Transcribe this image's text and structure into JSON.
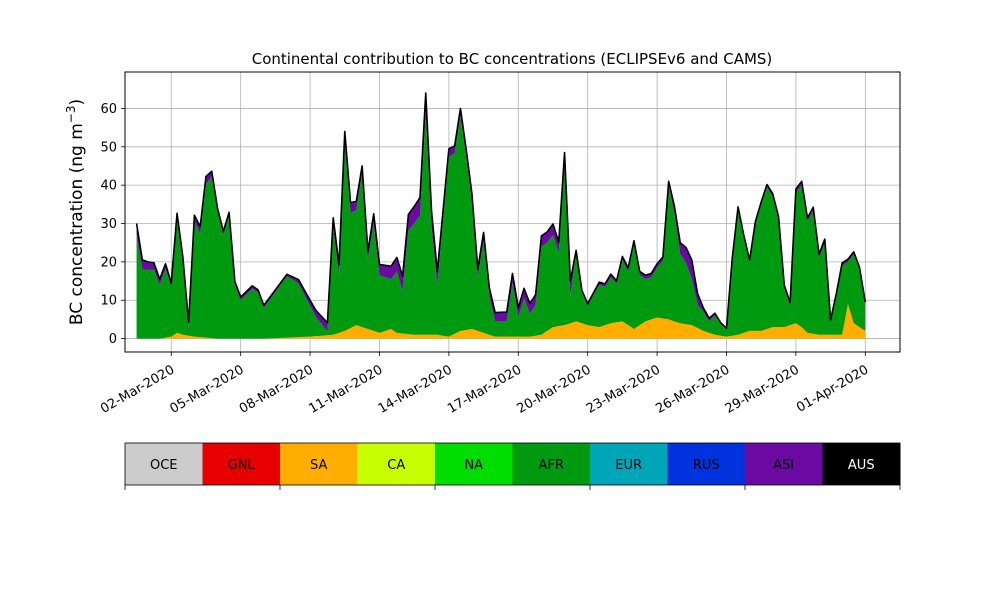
{
  "chart_data": {
    "type": "area",
    "title": "Continental contribution to BC concentrations (ECLIPSEv6 and CAMS)",
    "ylabel_main": "BC concentration (ng m",
    "ylabel_exp": "−3",
    "ylabel_close": ")",
    "xlabel": "",
    "ylim": [
      -3.5,
      69.5
    ],
    "yticks": [
      0,
      10,
      20,
      30,
      40,
      50,
      60
    ],
    "ytick_labels": [
      "0",
      "10",
      "20",
      "30",
      "40",
      "50",
      "60"
    ],
    "xlim": [
      "2020-02-29T00:00",
      "2020-04-02T12:00"
    ],
    "xtick_dates": [
      "2020-03-02",
      "2020-03-05",
      "2020-03-08",
      "2020-03-11",
      "2020-03-14",
      "2020-03-17",
      "2020-03-20",
      "2020-03-23",
      "2020-03-26",
      "2020-03-29",
      "2020-04-01"
    ],
    "xtick_labels": [
      "02-Mar-2020",
      "05-Mar-2020",
      "08-Mar-2020",
      "11-Mar-2020",
      "14-Mar-2020",
      "17-Mar-2020",
      "20-Mar-2020",
      "23-Mar-2020",
      "26-Mar-2020",
      "29-Mar-2020",
      "01-Apr-2020"
    ],
    "grid": true,
    "series_order": [
      "SA",
      "AFR",
      "ASI"
    ],
    "series": [
      {
        "name": "SA",
        "color": "#ffae00",
        "points": [
          [
            "2020-02-29T12:00",
            0
          ],
          [
            "2020-03-01T12:00",
            0
          ],
          [
            "2020-03-02T00:00",
            0.5
          ],
          [
            "2020-03-02T06:00",
            1.5
          ],
          [
            "2020-03-02T12:00",
            1
          ],
          [
            "2020-03-03T00:00",
            0.5
          ],
          [
            "2020-03-04T00:00",
            0
          ],
          [
            "2020-03-06T00:00",
            0
          ],
          [
            "2020-03-08T00:00",
            0.5
          ],
          [
            "2020-03-09T00:00",
            1
          ],
          [
            "2020-03-09T12:00",
            2
          ],
          [
            "2020-03-10T00:00",
            3.5
          ],
          [
            "2020-03-10T12:00",
            2.5
          ],
          [
            "2020-03-11T00:00",
            1.5
          ],
          [
            "2020-03-11T12:00",
            2.5
          ],
          [
            "2020-03-11T18:00",
            1.5
          ],
          [
            "2020-03-12T12:00",
            1
          ],
          [
            "2020-03-13T12:00",
            1
          ],
          [
            "2020-03-14T00:00",
            0.5
          ],
          [
            "2020-03-14T12:00",
            2
          ],
          [
            "2020-03-15T00:00",
            2.5
          ],
          [
            "2020-03-15T12:00",
            1.5
          ],
          [
            "2020-03-16T00:00",
            0.5
          ],
          [
            "2020-03-17T12:00",
            0.5
          ],
          [
            "2020-03-18T00:00",
            1
          ],
          [
            "2020-03-18T12:00",
            3
          ],
          [
            "2020-03-19T00:00",
            3.5
          ],
          [
            "2020-03-19T12:00",
            4.5
          ],
          [
            "2020-03-20T00:00",
            3.5
          ],
          [
            "2020-03-20T12:00",
            3
          ],
          [
            "2020-03-21T00:00",
            4
          ],
          [
            "2020-03-21T12:00",
            4.5
          ],
          [
            "2020-03-22T00:00",
            2.5
          ],
          [
            "2020-03-22T12:00",
            4.5
          ],
          [
            "2020-03-23T00:00",
            5.5
          ],
          [
            "2020-03-23T12:00",
            5
          ],
          [
            "2020-03-24T00:00",
            4
          ],
          [
            "2020-03-24T12:00",
            3.5
          ],
          [
            "2020-03-25T00:00",
            2
          ],
          [
            "2020-03-25T12:00",
            1
          ],
          [
            "2020-03-26T00:00",
            0.5
          ],
          [
            "2020-03-26T12:00",
            1
          ],
          [
            "2020-03-27T00:00",
            2
          ],
          [
            "2020-03-27T12:00",
            2
          ],
          [
            "2020-03-28T00:00",
            3
          ],
          [
            "2020-03-28T12:00",
            3
          ],
          [
            "2020-03-29T00:00",
            4
          ],
          [
            "2020-03-29T06:00",
            3
          ],
          [
            "2020-03-29T12:00",
            1.5
          ],
          [
            "2020-03-30T00:00",
            1
          ],
          [
            "2020-03-30T12:00",
            1
          ],
          [
            "2020-03-31T00:00",
            1
          ],
          [
            "2020-03-31T06:00",
            9
          ],
          [
            "2020-03-31T12:00",
            4
          ],
          [
            "2020-03-31T18:00",
            3
          ],
          [
            "2020-04-01T00:00",
            2
          ]
        ]
      },
      {
        "name": "AFR",
        "color": "#009a10",
        "points": [
          [
            "2020-02-29T12:00",
            27
          ],
          [
            "2020-02-29T18:00",
            18
          ],
          [
            "2020-03-01T00:00",
            18
          ],
          [
            "2020-03-01T06:00",
            18
          ],
          [
            "2020-03-01T12:00",
            14
          ],
          [
            "2020-03-01T18:00",
            18
          ],
          [
            "2020-03-02T00:00",
            13
          ],
          [
            "2020-03-02T06:00",
            30
          ],
          [
            "2020-03-02T12:00",
            19
          ],
          [
            "2020-03-02T18:00",
            2
          ],
          [
            "2020-03-03T00:00",
            30
          ],
          [
            "2020-03-03T06:00",
            27
          ],
          [
            "2020-03-03T12:00",
            40
          ],
          [
            "2020-03-03T18:00",
            42
          ],
          [
            "2020-03-04T00:00",
            33
          ],
          [
            "2020-03-04T06:00",
            27
          ],
          [
            "2020-03-04T12:00",
            32
          ],
          [
            "2020-03-04T18:00",
            14
          ],
          [
            "2020-03-05T00:00",
            10
          ],
          [
            "2020-03-05T12:00",
            13
          ],
          [
            "2020-03-05T18:00",
            12
          ],
          [
            "2020-03-06T00:00",
            8
          ],
          [
            "2020-03-06T12:00",
            12
          ],
          [
            "2020-03-07T00:00",
            16
          ],
          [
            "2020-03-07T12:00",
            14
          ],
          [
            "2020-03-08T00:00",
            8
          ],
          [
            "2020-03-08T06:00",
            5
          ],
          [
            "2020-03-08T12:00",
            3
          ],
          [
            "2020-03-08T18:00",
            1
          ],
          [
            "2020-03-09T00:00",
            28
          ],
          [
            "2020-03-09T06:00",
            15
          ],
          [
            "2020-03-09T12:00",
            49
          ],
          [
            "2020-03-09T18:00",
            30
          ],
          [
            "2020-03-10T00:00",
            30
          ],
          [
            "2020-03-10T06:00",
            40
          ],
          [
            "2020-03-10T12:00",
            18
          ],
          [
            "2020-03-10T18:00",
            28
          ],
          [
            "2020-03-11T00:00",
            15
          ],
          [
            "2020-03-11T12:00",
            13
          ],
          [
            "2020-03-11T18:00",
            16
          ],
          [
            "2020-03-12T00:00",
            11
          ],
          [
            "2020-03-12T06:00",
            27
          ],
          [
            "2020-03-12T12:00",
            29
          ],
          [
            "2020-03-12T18:00",
            31
          ],
          [
            "2020-03-13T00:00",
            58
          ],
          [
            "2020-03-13T06:00",
            28
          ],
          [
            "2020-03-13T12:00",
            13
          ],
          [
            "2020-03-13T18:00",
            30
          ],
          [
            "2020-03-14T00:00",
            47
          ],
          [
            "2020-03-14T06:00",
            47
          ],
          [
            "2020-03-14T12:00",
            56
          ],
          [
            "2020-03-14T18:00",
            45
          ],
          [
            "2020-03-15T00:00",
            33
          ],
          [
            "2020-03-15T06:00",
            14
          ],
          [
            "2020-03-15T12:00",
            24
          ],
          [
            "2020-03-15T18:00",
            10
          ],
          [
            "2020-03-16T00:00",
            4
          ],
          [
            "2020-03-16T06:00",
            4
          ],
          [
            "2020-03-16T12:00",
            4
          ],
          [
            "2020-03-16T18:00",
            14
          ],
          [
            "2020-03-17T00:00",
            5
          ],
          [
            "2020-03-17T06:00",
            10
          ],
          [
            "2020-03-17T12:00",
            6
          ],
          [
            "2020-03-17T18:00",
            8
          ],
          [
            "2020-03-18T00:00",
            23
          ],
          [
            "2020-03-18T06:00",
            23
          ],
          [
            "2020-03-18T12:00",
            24
          ],
          [
            "2020-03-18T18:00",
            19
          ],
          [
            "2020-03-19T00:00",
            42
          ],
          [
            "2020-03-19T06:00",
            7
          ],
          [
            "2020-03-19T12:00",
            18
          ],
          [
            "2020-03-19T18:00",
            8
          ],
          [
            "2020-03-20T00:00",
            5
          ],
          [
            "2020-03-20T06:00",
            8
          ],
          [
            "2020-03-20T12:00",
            11
          ],
          [
            "2020-03-20T18:00",
            10
          ],
          [
            "2020-03-21T00:00",
            12
          ],
          [
            "2020-03-21T06:00",
            10
          ],
          [
            "2020-03-21T12:00",
            16
          ],
          [
            "2020-03-21T18:00",
            14
          ],
          [
            "2020-03-22T00:00",
            22
          ],
          [
            "2020-03-22T06:00",
            13
          ],
          [
            "2020-03-22T12:00",
            11
          ],
          [
            "2020-03-22T18:00",
            11
          ],
          [
            "2020-03-23T00:00",
            13
          ],
          [
            "2020-03-23T06:00",
            15
          ],
          [
            "2020-03-23T12:00",
            35
          ],
          [
            "2020-03-23T18:00",
            28
          ],
          [
            "2020-03-24T00:00",
            18
          ],
          [
            "2020-03-24T06:00",
            16
          ],
          [
            "2020-03-24T12:00",
            12
          ],
          [
            "2020-03-24T18:00",
            6
          ],
          [
            "2020-03-25T00:00",
            5
          ],
          [
            "2020-03-25T06:00",
            3
          ],
          [
            "2020-03-25T12:00",
            5
          ],
          [
            "2020-03-25T18:00",
            3
          ],
          [
            "2020-03-26T00:00",
            2
          ],
          [
            "2020-03-26T06:00",
            20
          ],
          [
            "2020-03-26T12:00",
            33
          ],
          [
            "2020-03-26T18:00",
            25
          ],
          [
            "2020-03-27T00:00",
            18
          ],
          [
            "2020-03-27T06:00",
            28
          ],
          [
            "2020-03-27T12:00",
            33
          ],
          [
            "2020-03-27T18:00",
            37
          ],
          [
            "2020-03-28T00:00",
            34
          ],
          [
            "2020-03-28T06:00",
            28
          ],
          [
            "2020-03-28T12:00",
            10
          ],
          [
            "2020-03-28T18:00",
            5
          ],
          [
            "2020-03-29T00:00",
            34
          ],
          [
            "2020-03-29T06:00",
            37
          ],
          [
            "2020-03-29T12:00",
            29
          ],
          [
            "2020-03-29T18:00",
            32
          ],
          [
            "2020-03-30T00:00",
            20
          ],
          [
            "2020-03-30T06:00",
            24
          ],
          [
            "2020-03-30T12:00",
            3
          ],
          [
            "2020-03-30T18:00",
            10
          ],
          [
            "2020-03-31T00:00",
            18
          ],
          [
            "2020-03-31T06:00",
            11
          ],
          [
            "2020-03-31T12:00",
            18
          ],
          [
            "2020-03-31T18:00",
            15
          ],
          [
            "2020-04-01T00:00",
            7
          ]
        ]
      },
      {
        "name": "ASI",
        "color": "#6a0aa3",
        "points": [
          [
            "2020-02-29T12:00",
            3
          ],
          [
            "2020-03-01T00:00",
            2
          ],
          [
            "2020-03-02T00:00",
            1
          ],
          [
            "2020-03-03T12:00",
            2
          ],
          [
            "2020-03-04T00:00",
            1
          ],
          [
            "2020-03-07T00:00",
            0.5
          ],
          [
            "2020-03-09T12:00",
            3
          ],
          [
            "2020-03-10T06:00",
            2
          ],
          [
            "2020-03-13T00:00",
            5
          ],
          [
            "2020-03-14T00:00",
            2
          ],
          [
            "2020-03-14T18:00",
            2
          ],
          [
            "2020-03-19T00:00",
            3
          ],
          [
            "2020-03-19T06:00",
            4
          ],
          [
            "2020-03-19T12:00",
            0.5
          ],
          [
            "2020-03-22T00:00",
            1
          ],
          [
            "2020-03-23T12:00",
            1
          ],
          [
            "2020-03-24T00:00",
            3
          ],
          [
            "2020-03-24T12:00",
            5
          ],
          [
            "2020-03-25T00:00",
            1
          ],
          [
            "2020-03-26T00:00",
            0.2
          ],
          [
            "2020-03-29T00:00",
            1
          ],
          [
            "2020-03-30T00:00",
            1
          ],
          [
            "2020-04-01T00:00",
            0.5
          ]
        ]
      }
    ],
    "colorbar": {
      "segments": [
        {
          "label": "OCE",
          "color": "#cccccc"
        },
        {
          "label": "GNL",
          "color": "#e60000"
        },
        {
          "label": "SA",
          "color": "#ffae00"
        },
        {
          "label": "CA",
          "color": "#c8ff00"
        },
        {
          "label": "NA",
          "color": "#00dd00"
        },
        {
          "label": "AFR",
          "color": "#009a10"
        },
        {
          "label": "EUR",
          "color": "#00a5b8"
        },
        {
          "label": "RUS",
          "color": "#0033dd"
        },
        {
          "label": "ASI",
          "color": "#6a0aa3"
        },
        {
          "label": "AUS",
          "color": "#000000"
        }
      ]
    }
  }
}
